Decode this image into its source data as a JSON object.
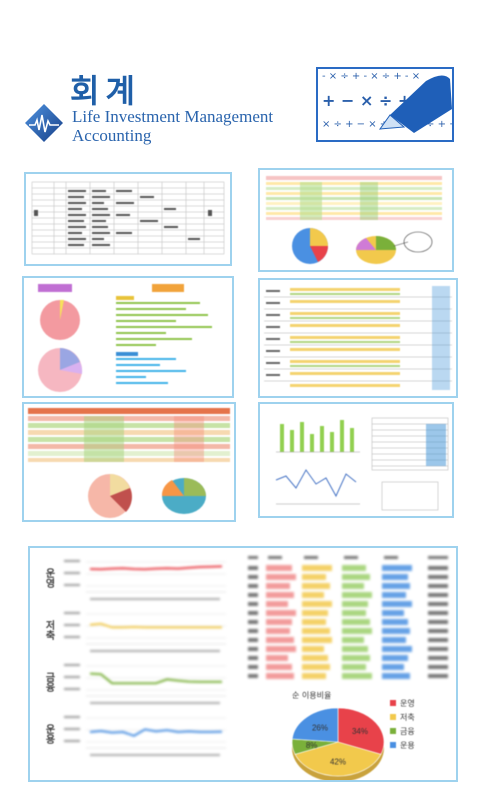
{
  "header": {
    "title_kr": "회계",
    "title_en_line1": "Life Investment Management",
    "title_en_line2": "Accounting",
    "logo_icon": "pulse-wave-icon",
    "math_symbols_icon": "math-operators-pen-icon"
  },
  "colors": {
    "brand_blue": "#1f5fa8",
    "panel_border": "#9ed2ee",
    "chart_red": "#e8424a",
    "chart_yellow": "#f2c94c",
    "chart_green": "#7ab03a",
    "chart_blue": "#4a90e2"
  },
  "bottom_panel": {
    "row_labels": [
      "운영",
      "저축",
      "금융",
      "운용"
    ],
    "pie_title": "순 이용비율",
    "pie_legend": [
      "운영",
      "저축",
      "금융",
      "운용"
    ],
    "pie_percents": [
      "34%",
      "42%",
      "8%",
      "26%"
    ]
  },
  "chart_data": [
    {
      "type": "line",
      "series": [
        {
          "values": [
            72,
            71,
            73,
            74,
            72,
            71,
            73,
            74,
            73,
            76,
            78,
            79,
            80
          ]
        }
      ]
    },
    {
      "type": "line",
      "series": [
        {
          "values": [
            60,
            63,
            52,
            52,
            53,
            52,
            52,
            52,
            52,
            52,
            52,
            52,
            52
          ]
        }
      ]
    },
    {
      "type": "line",
      "series": [
        {
          "values": [
            70,
            68,
            40,
            40,
            40,
            40,
            40,
            52,
            48,
            45,
            44,
            44,
            44
          ]
        }
      ]
    },
    {
      "type": "line",
      "series": [
        {
          "values": [
            50,
            53,
            48,
            50,
            38,
            58,
            52,
            56,
            50,
            52,
            50,
            50,
            51
          ]
        }
      ]
    },
    {
      "type": "pie",
      "categories": [
        "운영",
        "저축",
        "금융",
        "운용"
      ],
      "values": [
        34,
        42,
        8,
        26
      ]
    }
  ]
}
